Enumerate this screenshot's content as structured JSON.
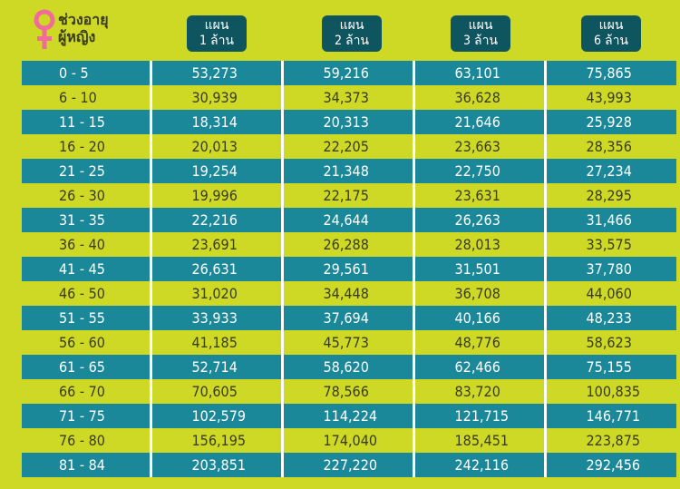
{
  "header": {
    "age_label_line1": "ช่วงอายุ",
    "age_label_line2": "ผู้หญิง",
    "icon": "female-symbol-icon",
    "plans": [
      {
        "line1": "แผน",
        "line2": "1 ล้าน"
      },
      {
        "line1": "แผน",
        "line2": "2 ล้าน"
      },
      {
        "line1": "แผน",
        "line2": "3 ล้าน"
      },
      {
        "line1": "แผน",
        "line2": "6 ล้าน"
      }
    ]
  },
  "colors": {
    "background": "#cdd924",
    "row_teal": "#1a8898",
    "badge": "#0e5560",
    "icon_pink": "#f06b9a"
  },
  "rows": [
    {
      "age": "0 - 5",
      "values": [
        "53,273",
        "59,216",
        "63,101",
        "75,865"
      ]
    },
    {
      "age": "6 - 10",
      "values": [
        "30,939",
        "34,373",
        "36,628",
        "43,993"
      ]
    },
    {
      "age": "11 - 15",
      "values": [
        "18,314",
        "20,313",
        "21,646",
        "25,928"
      ]
    },
    {
      "age": "16 - 20",
      "values": [
        "20,013",
        "22,205",
        "23,663",
        "28,356"
      ]
    },
    {
      "age": "21 - 25",
      "values": [
        "19,254",
        "21,348",
        "22,750",
        "27,234"
      ]
    },
    {
      "age": "26 - 30",
      "values": [
        "19,996",
        "22,175",
        "23,631",
        "28,295"
      ]
    },
    {
      "age": "31 - 35",
      "values": [
        "22,216",
        "24,644",
        "26,263",
        "31,466"
      ]
    },
    {
      "age": "36 - 40",
      "values": [
        "23,691",
        "26,288",
        "28,013",
        "33,575"
      ]
    },
    {
      "age": "41 - 45",
      "values": [
        "26,631",
        "29,561",
        "31,501",
        "37,780"
      ]
    },
    {
      "age": "46 - 50",
      "values": [
        "31,020",
        "34,448",
        "36,708",
        "44,060"
      ]
    },
    {
      "age": "51 - 55",
      "values": [
        "33,933",
        "37,694",
        "40,166",
        "48,233"
      ]
    },
    {
      "age": "56 - 60",
      "values": [
        "41,185",
        "45,773",
        "48,776",
        "58,623"
      ]
    },
    {
      "age": "61 - 65",
      "values": [
        "52,714",
        "58,620",
        "62,466",
        "75,155"
      ]
    },
    {
      "age": "66 - 70",
      "values": [
        "70,605",
        "78,566",
        "83,720",
        "100,835"
      ]
    },
    {
      "age": "71 - 75",
      "values": [
        "102,579",
        "114,224",
        "121,715",
        "146,771"
      ]
    },
    {
      "age": "76 - 80",
      "values": [
        "156,195",
        "174,040",
        "185,451",
        "223,875"
      ]
    },
    {
      "age": "81 - 84",
      "values": [
        "203,851",
        "227,220",
        "242,116",
        "292,456"
      ]
    }
  ]
}
